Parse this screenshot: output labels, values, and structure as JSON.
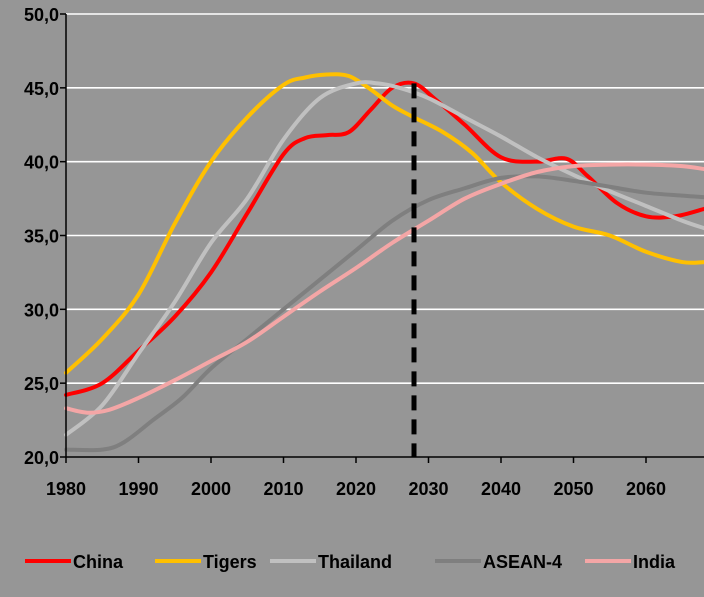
{
  "chart_data": {
    "type": "line",
    "title": "",
    "xlabel": "",
    "ylabel": "",
    "xlim": [
      1980,
      2068
    ],
    "ylim": [
      20,
      50
    ],
    "x_ticks": [
      1980,
      1990,
      2000,
      2010,
      2020,
      2030,
      2040,
      2050,
      2060
    ],
    "x_tick_labels": [
      "1980",
      "1990",
      "2000",
      "2010",
      "2020",
      "2030",
      "2040",
      "2050",
      "2060"
    ],
    "y_ticks": [
      20,
      25,
      30,
      35,
      40,
      45,
      50
    ],
    "y_tick_labels": [
      "20,0",
      "25,0",
      "30,0",
      "35,0",
      "40,0",
      "45,0",
      "50,0"
    ],
    "grid": "horizontal",
    "legend_position": "bottom",
    "background_color": "#969696",
    "gridline_color": "#ffffff",
    "reference_line": {
      "x": 2028,
      "style": "dashed",
      "color": "#000000"
    },
    "series": [
      {
        "name": "China",
        "color": "#ff0000",
        "x": [
          1980,
          1985,
          1990,
          1995,
          2000,
          2005,
          2010,
          2013,
          2016,
          2019,
          2022,
          2025,
          2028,
          2031,
          2035,
          2040,
          2045,
          2049,
          2052,
          2056,
          2060,
          2064,
          2068
        ],
        "y": [
          24.2,
          25.0,
          27.2,
          29.5,
          32.5,
          36.5,
          40.5,
          41.6,
          41.8,
          42.0,
          43.5,
          45.0,
          45.3,
          44.2,
          42.5,
          40.3,
          40.0,
          40.2,
          39.0,
          37.2,
          36.3,
          36.3,
          36.8
        ]
      },
      {
        "name": "Tigers",
        "color": "#ffc000",
        "x": [
          1980,
          1985,
          1990,
          1995,
          2000,
          2005,
          2010,
          2013,
          2016,
          2019,
          2022,
          2025,
          2028,
          2032,
          2036,
          2040,
          2045,
          2050,
          2055,
          2060,
          2065,
          2068
        ],
        "y": [
          25.7,
          28.0,
          31.0,
          35.8,
          40.0,
          43.0,
          45.2,
          45.7,
          45.9,
          45.8,
          44.9,
          43.8,
          43.0,
          42.0,
          40.6,
          38.6,
          36.8,
          35.6,
          35.0,
          33.9,
          33.2,
          33.2
        ]
      },
      {
        "name": "Thailand",
        "color": "#c0c0c0",
        "x": [
          1980,
          1985,
          1990,
          1995,
          2000,
          2005,
          2010,
          2015,
          2020,
          2023,
          2026,
          2030,
          2035,
          2040,
          2045,
          2050,
          2055,
          2060,
          2065,
          2068
        ],
        "y": [
          21.5,
          23.5,
          27.0,
          30.5,
          34.5,
          37.5,
          41.5,
          44.3,
          45.3,
          45.3,
          45.0,
          44.3,
          43.0,
          41.7,
          40.3,
          39.1,
          38.0,
          37.0,
          36.0,
          35.5
        ]
      },
      {
        "name": "ASEAN-4",
        "color": "#7f7f7f",
        "x": [
          1980,
          1985,
          1988,
          1992,
          1996,
          2000,
          2005,
          2010,
          2015,
          2020,
          2025,
          2030,
          2035,
          2040,
          2045,
          2050,
          2055,
          2060,
          2065,
          2068
        ],
        "y": [
          20.5,
          20.5,
          21.0,
          22.5,
          24.0,
          26.0,
          28.0,
          30.0,
          32.0,
          34.0,
          36.0,
          37.4,
          38.2,
          38.9,
          39.0,
          38.7,
          38.3,
          37.9,
          37.7,
          37.6
        ]
      },
      {
        "name": "India",
        "color": "#f4a6a6",
        "x": [
          1980,
          1983,
          1986,
          1990,
          1995,
          2000,
          2005,
          2010,
          2015,
          2020,
          2025,
          2030,
          2035,
          2040,
          2045,
          2050,
          2055,
          2060,
          2065,
          2068
        ],
        "y": [
          23.3,
          23.0,
          23.2,
          24.0,
          25.2,
          26.5,
          27.8,
          29.5,
          31.2,
          32.8,
          34.5,
          36.0,
          37.5,
          38.5,
          39.3,
          39.7,
          39.8,
          39.8,
          39.7,
          39.5
        ]
      }
    ]
  }
}
